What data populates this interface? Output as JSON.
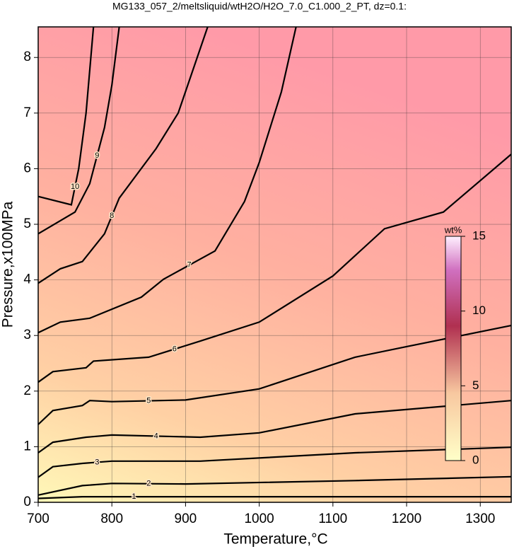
{
  "chart_data": {
    "type": "contour",
    "title": "MG133_057_2/meltsliquid/wtH2O/H2O_7.0_C1.000_2_PT, dz=0.1:",
    "x_label": "Temperature,°C",
    "y_label": "Pressure,x100MPa",
    "xlim": [
      700,
      1342
    ],
    "ylim": [
      0,
      8.55
    ],
    "xticks": [
      700,
      800,
      900,
      1000,
      1100,
      1200,
      1300
    ],
    "yticks": [
      0,
      1,
      2,
      3,
      4,
      5,
      6,
      7,
      8
    ],
    "grid": true,
    "colorbar": {
      "label": "wt%",
      "lim": [
        0,
        15
      ],
      "ticks": [
        0,
        5,
        10,
        15
      ]
    },
    "contours": [
      {
        "level": 1,
        "x": [
          700,
          760,
          900,
          1130,
          1342
        ],
        "y": [
          0.07,
          0.1,
          0.1,
          0.1,
          0.1
        ]
      },
      {
        "level": 2,
        "x": [
          700,
          760,
          800,
          900,
          1130,
          1342
        ],
        "y": [
          0.13,
          0.3,
          0.34,
          0.33,
          0.39,
          0.46
        ]
      },
      {
        "level": 3,
        "x": [
          700,
          720,
          760,
          800,
          920,
          1130,
          1342
        ],
        "y": [
          0.45,
          0.64,
          0.7,
          0.74,
          0.74,
          0.89,
          0.99
        ]
      },
      {
        "level": 4,
        "x": [
          700,
          720,
          765,
          800,
          920,
          1000,
          1130,
          1342
        ],
        "y": [
          0.89,
          1.08,
          1.17,
          1.21,
          1.17,
          1.25,
          1.59,
          1.83
        ]
      },
      {
        "level": 5,
        "x": [
          700,
          720,
          760,
          770,
          800,
          900,
          1000,
          1130,
          1200,
          1342
        ],
        "y": [
          1.4,
          1.65,
          1.74,
          1.83,
          1.81,
          1.84,
          2.04,
          2.61,
          2.8,
          3.18
        ]
      },
      {
        "level": 6,
        "x": [
          700,
          720,
          765,
          775,
          850,
          920,
          1000,
          1100,
          1170,
          1250,
          1342
        ],
        "y": [
          2.16,
          2.35,
          2.42,
          2.54,
          2.61,
          2.9,
          3.24,
          4.07,
          4.92,
          5.22,
          6.26
        ]
      },
      {
        "level": 7,
        "x": [
          700,
          730,
          770,
          840,
          870,
          940,
          980,
          1000,
          1030,
          1050
        ],
        "y": [
          3.05,
          3.24,
          3.31,
          3.69,
          4.01,
          4.52,
          5.41,
          6.11,
          7.38,
          8.55
        ]
      },
      {
        "level": 8,
        "x": [
          700,
          730,
          760,
          790,
          810,
          860,
          890,
          930
        ],
        "y": [
          3.94,
          4.2,
          4.33,
          4.83,
          5.47,
          6.36,
          7.0,
          8.55
        ]
      },
      {
        "level": 9,
        "x": [
          700,
          750,
          770,
          790,
          800,
          810
        ],
        "y": [
          4.83,
          5.22,
          5.73,
          6.74,
          7.5,
          8.55
        ]
      },
      {
        "level": 10,
        "x": [
          700,
          745,
          755,
          765,
          775
        ],
        "y": [
          5.5,
          5.35,
          6.0,
          7.0,
          8.55
        ]
      }
    ]
  }
}
